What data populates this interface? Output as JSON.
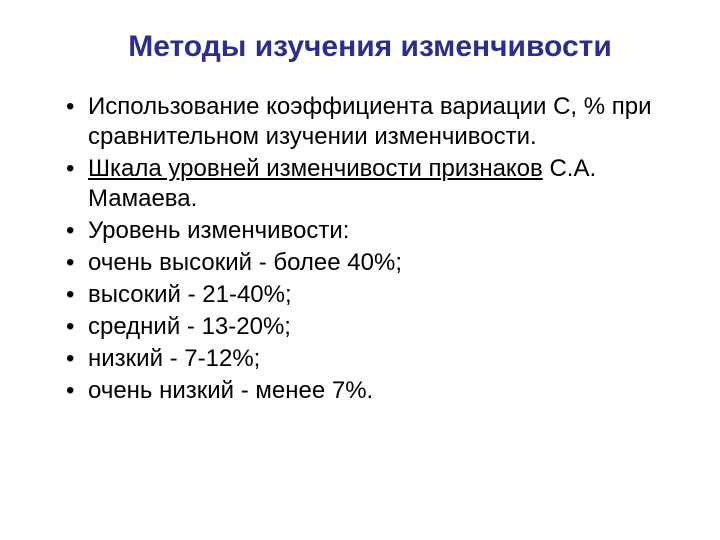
{
  "slide": {
    "title": "Методы изучения изменчивости",
    "title_color": "#2c2e8f",
    "title_fontsize": 30,
    "title_fontweight": "bold",
    "background_color": "#ffffff",
    "text_color": "#000000",
    "body_fontsize": 24,
    "bullets": [
      {
        "text_parts": [
          {
            "text": "Использование коэффициента вариации С, % при сравнительном изучении изменчивости.",
            "underlined": false
          }
        ]
      },
      {
        "text_parts": [
          {
            "text": "Шкала уровней изменчивости признаков",
            "underlined": true
          },
          {
            "text": "  С.А. Мамаева.",
            "underlined": false
          }
        ]
      },
      {
        "text_parts": [
          {
            "text": "Уровень изменчивости:",
            "underlined": false
          }
        ]
      },
      {
        "text_parts": [
          {
            "text": "очень высокий -  более 40%;",
            "underlined": false
          }
        ]
      },
      {
        "text_parts": [
          {
            "text": "высокий - 21-40%;",
            "underlined": false
          }
        ]
      },
      {
        "text_parts": [
          {
            "text": "средний - 13-20%;",
            "underlined": false
          }
        ]
      },
      {
        "text_parts": [
          {
            "text": "низкий - 7-12%;",
            "underlined": false
          }
        ]
      },
      {
        "text_parts": [
          {
            "text": "очень низкий - менее 7%.",
            "underlined": false
          }
        ]
      }
    ]
  }
}
